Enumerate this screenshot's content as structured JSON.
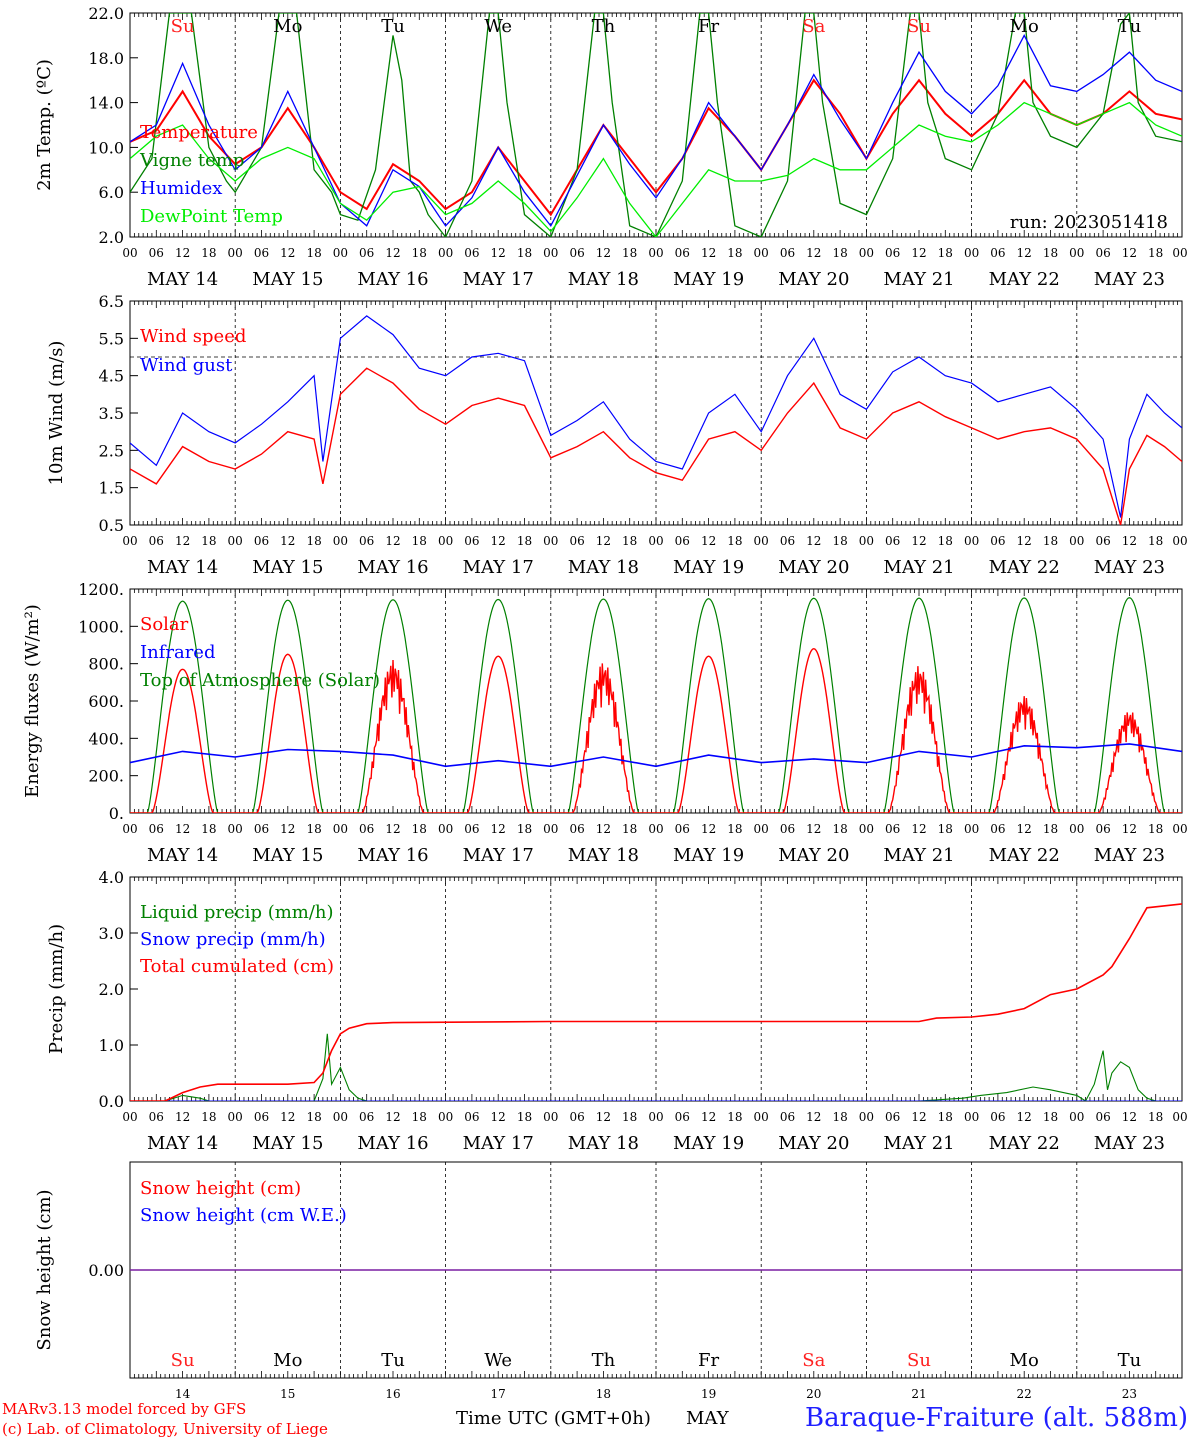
{
  "run_label": "run: 2023051418",
  "footer": {
    "model_line": "MARv3.13 model forced by GFS",
    "lab_line": "(c) Lab. of Climatology, University of Liege",
    "xaxis_title": "Time UTC (GMT+0h)",
    "month": "MAY",
    "station": "Baraque-Fraiture (alt. 588m)"
  },
  "hour_ticks": [
    "00",
    "06",
    "12",
    "18"
  ],
  "final_tick": "00",
  "date_labels": [
    "MAY 14",
    "MAY 15",
    "MAY 16",
    "MAY 17",
    "MAY 18",
    "MAY 19",
    "MAY 20",
    "MAY 21",
    "MAY 22",
    "MAY 23"
  ],
  "day_names": [
    "Su",
    "Mo",
    "Tu",
    "We",
    "Th",
    "Fr",
    "Sa",
    "Su",
    "Mo",
    "Tu"
  ],
  "weekend_color": "#ff2020",
  "day_numbers": [
    "14",
    "15",
    "16",
    "17",
    "18",
    "19",
    "20",
    "21",
    "22",
    "23"
  ],
  "chart_data": [
    {
      "type": "line",
      "ylabel": "2m Temp. (ºC)",
      "ylim": [
        2,
        22
      ],
      "yticks": [
        "2.0",
        "6.0",
        "10.0",
        "14.0",
        "18.0",
        "22.0"
      ],
      "x_unit": "hours since MAY 14 00 UTC",
      "series": [
        {
          "name": "Temperature",
          "color": "#ff0000",
          "x": [
            0,
            6,
            12,
            18,
            24,
            30,
            36,
            42,
            48,
            54,
            60,
            66,
            72,
            78,
            84,
            90,
            96,
            102,
            108,
            114,
            120,
            126,
            132,
            138,
            144,
            150,
            156,
            162,
            168,
            174,
            180,
            186,
            192,
            198,
            204,
            210,
            216,
            222,
            228,
            234,
            240
          ],
          "y": [
            10.5,
            11.5,
            15,
            11,
            8.5,
            10,
            13.5,
            10,
            6,
            4.5,
            8.5,
            7,
            4.5,
            6,
            10,
            7,
            4,
            8,
            12,
            9,
            6,
            9,
            13.5,
            11,
            8,
            12,
            16,
            13,
            9,
            13,
            16,
            13,
            11,
            13,
            16,
            13,
            12,
            13,
            15,
            13,
            12.5
          ]
        },
        {
          "name": "Vigne temp",
          "color": "#008000",
          "x": [
            0,
            5,
            9,
            14,
            18,
            22,
            24,
            30,
            34,
            38,
            42,
            46,
            48,
            52,
            56,
            58,
            60,
            62,
            64,
            66,
            68,
            72,
            78,
            82,
            84,
            86,
            90,
            96,
            102,
            106,
            108,
            110,
            114,
            120,
            126,
            130,
            132,
            134,
            138,
            144,
            150,
            154,
            156,
            158,
            162,
            168,
            174,
            178,
            180,
            182,
            186,
            192,
            198,
            202,
            204,
            206,
            210,
            216,
            222,
            226,
            228,
            230,
            234,
            240
          ],
          "y": [
            6,
            9,
            22,
            22,
            10,
            7,
            6,
            10,
            22,
            22,
            8,
            6,
            4,
            3.5,
            8,
            14,
            20,
            16,
            7,
            6,
            4,
            2,
            7,
            22,
            22,
            14,
            4,
            2,
            8,
            22,
            22,
            14,
            3,
            2,
            7,
            22,
            22,
            14,
            3,
            2,
            7,
            22,
            22,
            14,
            5,
            4,
            9,
            22,
            22,
            14,
            9,
            8,
            13,
            22,
            22,
            14,
            11,
            10,
            13,
            21,
            22,
            14,
            11,
            10.5
          ]
        },
        {
          "name": "Humidex",
          "color": "#0000ff",
          "x": [
            0,
            6,
            12,
            18,
            24,
            30,
            36,
            42,
            48,
            54,
            60,
            66,
            72,
            78,
            84,
            90,
            96,
            102,
            108,
            114,
            120,
            126,
            132,
            138,
            144,
            150,
            156,
            162,
            168,
            174,
            180,
            186,
            192,
            198,
            204,
            210,
            216,
            222,
            228,
            234,
            240
          ],
          "y": [
            10.5,
            12,
            17.5,
            12,
            8,
            10,
            15,
            10,
            5,
            3,
            8,
            6.5,
            3,
            5.5,
            10,
            6,
            3,
            7.5,
            12,
            8.5,
            5.5,
            9,
            14,
            11,
            8,
            12,
            16.5,
            12.5,
            9,
            14,
            18.5,
            15,
            13,
            15.5,
            20,
            15.5,
            15,
            16.5,
            18.5,
            16,
            15
          ]
        },
        {
          "name": "DewPoint Temp",
          "color": "#00ee00",
          "x": [
            0,
            6,
            12,
            18,
            24,
            30,
            36,
            42,
            48,
            54,
            60,
            66,
            72,
            78,
            84,
            90,
            96,
            102,
            108,
            114,
            120,
            126,
            132,
            138,
            144,
            150,
            156,
            162,
            168,
            174,
            180,
            186,
            192,
            198,
            204,
            210,
            216,
            222,
            228,
            234,
            240
          ],
          "y": [
            9,
            11,
            12,
            9,
            7,
            9,
            10,
            9,
            5,
            3.5,
            6,
            6.5,
            4,
            5,
            7,
            5,
            2.5,
            5.5,
            9,
            5,
            2,
            5,
            8,
            7,
            7,
            7.5,
            9,
            8,
            8,
            10,
            12,
            11,
            10.5,
            12,
            14,
            13,
            12,
            13,
            14,
            12,
            11
          ]
        }
      ]
    },
    {
      "type": "line",
      "ylabel": "10m Wind (m/s)",
      "ylim": [
        0.5,
        6.5
      ],
      "yticks": [
        "0.5",
        "1.5",
        "2.5",
        "3.5",
        "4.5",
        "5.5",
        "6.5"
      ],
      "reference_line": 5,
      "x_unit": "hours since MAY 14 00 UTC",
      "series": [
        {
          "name": "Wind speed",
          "color": "#ff0000",
          "x": [
            0,
            6,
            12,
            18,
            24,
            30,
            36,
            42,
            44,
            48,
            54,
            60,
            66,
            72,
            78,
            84,
            90,
            96,
            102,
            108,
            114,
            120,
            126,
            132,
            138,
            144,
            150,
            156,
            162,
            168,
            174,
            180,
            186,
            192,
            198,
            204,
            210,
            216,
            222,
            226,
            228,
            232,
            236,
            240
          ],
          "y": [
            2,
            1.6,
            2.6,
            2.2,
            2,
            2.4,
            3,
            2.8,
            1.6,
            4,
            4.7,
            4.3,
            3.6,
            3.2,
            3.7,
            3.9,
            3.7,
            2.3,
            2.6,
            3,
            2.3,
            1.9,
            1.7,
            2.8,
            3,
            2.5,
            3.5,
            4.3,
            3.1,
            2.8,
            3.5,
            3.8,
            3.4,
            3.1,
            2.8,
            3,
            3.1,
            2.8,
            2,
            0.5,
            2,
            2.9,
            2.6,
            2.2
          ]
        },
        {
          "name": "Wind gust",
          "color": "#0000ff",
          "x": [
            0,
            6,
            12,
            18,
            24,
            30,
            36,
            42,
            44,
            48,
            54,
            60,
            66,
            72,
            78,
            84,
            90,
            96,
            102,
            108,
            114,
            120,
            126,
            132,
            138,
            144,
            150,
            156,
            162,
            168,
            174,
            180,
            186,
            192,
            198,
            204,
            210,
            216,
            222,
            226,
            228,
            232,
            236,
            240
          ],
          "y": [
            2.7,
            2.1,
            3.5,
            3,
            2.7,
            3.2,
            3.8,
            4.5,
            2.2,
            5.5,
            6.1,
            5.6,
            4.7,
            4.5,
            5,
            5.1,
            4.9,
            2.9,
            3.3,
            3.8,
            2.8,
            2.2,
            2,
            3.5,
            4,
            3,
            4.5,
            5.5,
            4,
            3.6,
            4.6,
            5,
            4.5,
            4.3,
            3.8,
            4,
            4.2,
            3.6,
            2.8,
            0.7,
            2.8,
            4,
            3.5,
            3.1
          ]
        }
      ]
    },
    {
      "type": "line",
      "ylabel": "Energy fluxes (W/m²)",
      "ylim": [
        0,
        1200
      ],
      "yticks": [
        "0.",
        "200.",
        "400.",
        "600.",
        "800.",
        "1000.",
        "1200."
      ],
      "x_unit": "hours since MAY 14 00 UTC",
      "series": [
        {
          "name": "Solar",
          "color": "#ff0000",
          "day_peaks": [
            770,
            850,
            820,
            840,
            810,
            840,
            880,
            790,
            630,
            550
          ]
        },
        {
          "name": "Infrared",
          "color": "#0000ff",
          "x": [
            0,
            12,
            24,
            36,
            48,
            60,
            72,
            84,
            96,
            108,
            120,
            132,
            144,
            156,
            168,
            180,
            192,
            204,
            216,
            228,
            240
          ],
          "y": [
            270,
            330,
            300,
            340,
            330,
            310,
            250,
            280,
            250,
            300,
            250,
            310,
            270,
            290,
            270,
            330,
            300,
            360,
            350,
            370,
            330
          ]
        },
        {
          "name": "Top of Atmosphere (Solar)",
          "color": "#008000",
          "day_peaks": [
            1135,
            1140,
            1142,
            1144,
            1146,
            1148,
            1150,
            1151,
            1152,
            1153
          ]
        }
      ]
    },
    {
      "type": "line",
      "ylabel": "Precip (mm/h)",
      "ylim": [
        0,
        4
      ],
      "yticks": [
        "0.0",
        "1.0",
        "2.0",
        "3.0",
        "4.0"
      ],
      "x_unit": "hours since MAY 14 00 UTC",
      "series": [
        {
          "name": "Liquid precip (mm/h)",
          "color": "#008000",
          "x": [
            0,
            8,
            12,
            16,
            18,
            20,
            42,
            44,
            45,
            46,
            48,
            50,
            52,
            54,
            180,
            190,
            194,
            200,
            206,
            210,
            216,
            218,
            220,
            222,
            223,
            224,
            226,
            228,
            230,
            232,
            234,
            236,
            240
          ],
          "y": [
            0,
            0,
            0.1,
            0.05,
            0,
            0,
            0,
            0.4,
            1.2,
            0.3,
            0.6,
            0.2,
            0.05,
            0,
            0,
            0.05,
            0.1,
            0.15,
            0.25,
            0.2,
            0.1,
            0,
            0.3,
            0.9,
            0.2,
            0.5,
            0.7,
            0.6,
            0.2,
            0.05,
            0,
            0,
            0
          ]
        },
        {
          "name": "Snow precip (mm/h)",
          "color": "#0000ff",
          "x": [
            0,
            240
          ],
          "y": [
            0,
            0
          ]
        },
        {
          "name": "Total cumulated (cm)",
          "color": "#ff0000",
          "x": [
            0,
            8,
            12,
            16,
            20,
            24,
            36,
            42,
            44,
            46,
            48,
            50,
            54,
            60,
            96,
            144,
            180,
            184,
            192,
            198,
            204,
            210,
            216,
            222,
            224,
            228,
            232,
            240
          ],
          "y": [
            0,
            0,
            0.15,
            0.25,
            0.3,
            0.3,
            0.3,
            0.33,
            0.5,
            0.9,
            1.2,
            1.3,
            1.38,
            1.4,
            1.42,
            1.42,
            1.42,
            1.48,
            1.5,
            1.55,
            1.65,
            1.9,
            2,
            2.25,
            2.4,
            2.9,
            3.45,
            3.52
          ]
        }
      ]
    },
    {
      "type": "line",
      "ylabel": "Snow height (cm)",
      "yticks": [
        "0.00"
      ],
      "x_unit": "hours since MAY 14 00 UTC",
      "series": [
        {
          "name": "Snow height (cm)",
          "color": "#ff0000",
          "x": [
            0,
            240
          ],
          "y": [
            0,
            0
          ]
        },
        {
          "name": "Snow height (cm W.E.)",
          "color": "#0000ff",
          "x": [
            0,
            240
          ],
          "y": [
            0,
            0
          ]
        }
      ]
    }
  ]
}
